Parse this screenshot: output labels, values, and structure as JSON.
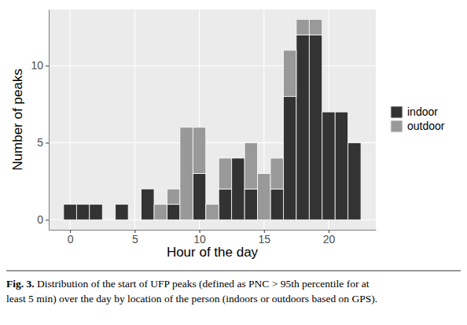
{
  "chart_data": {
    "type": "histogram",
    "stacked": true,
    "bins": [
      -0.5,
      0.5,
      1.5,
      2.5,
      3.5,
      4.5,
      5.5,
      6.5,
      7.5,
      8.5,
      9.5,
      10.5,
      11.5,
      12.5,
      13.5,
      14.5,
      15.5,
      16.5,
      17.5,
      18.5,
      19.5,
      20.5,
      21.5,
      22.5
    ],
    "series": [
      {
        "name": "indoor",
        "color": "#333333",
        "values": [
          1,
          1,
          1,
          0,
          1,
          0,
          2,
          0,
          1,
          0,
          3,
          0,
          2,
          4,
          2,
          0,
          2,
          8,
          12,
          12,
          7,
          7,
          5
        ]
      },
      {
        "name": "outdoor",
        "color": "#999999",
        "values": [
          0,
          0,
          0,
          0,
          0,
          0,
          0,
          1,
          1,
          6,
          3,
          1,
          2,
          0,
          3,
          3,
          2,
          3,
          1,
          1,
          0,
          0,
          0
        ]
      }
    ],
    "x_label": "Hour of the day",
    "y_label": "Number of peaks",
    "xlim": [
      -1.65,
      23.65
    ],
    "ylim": [
      -0.65,
      13.65
    ],
    "xticks": [
      0,
      5,
      10,
      15,
      20
    ],
    "yticks": [
      0,
      5,
      10
    ],
    "grid": true,
    "legend": "right",
    "caption_label": "Fig. 3.",
    "caption": [
      "Distribution of the start of UFP peaks (defined as PNC > 95th percentile for at",
      "least 5 min) over the day by location of the person (indoors or outdoors based on GPS)."
    ]
  }
}
